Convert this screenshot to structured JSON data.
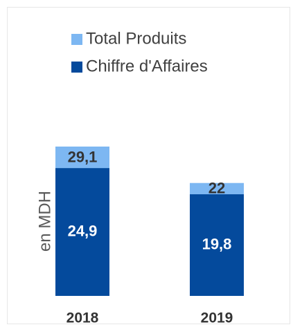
{
  "chart_data": {
    "type": "bar",
    "overlap": true,
    "y_label": "en MDH",
    "categories": [
      "2018",
      "2019"
    ],
    "series": [
      {
        "name": "Total Produits",
        "color": "#7db7f2",
        "values": [
          29.1,
          22
        ],
        "value_labels": [
          "29,1",
          "22"
        ]
      },
      {
        "name": "Chiffre d'Affaires",
        "color": "#044a9c",
        "values": [
          24.9,
          19.8
        ],
        "value_labels": [
          "24,9",
          "19,8"
        ]
      }
    ]
  }
}
